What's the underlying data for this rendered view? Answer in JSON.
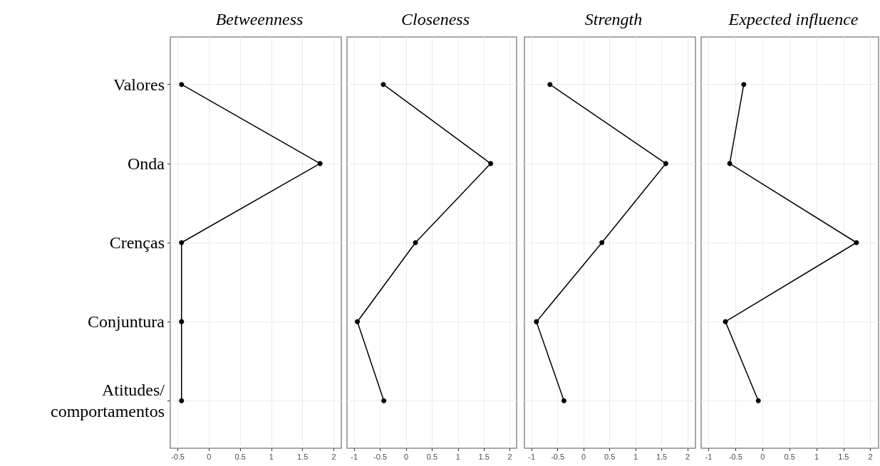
{
  "chart_data": [
    {
      "type": "line",
      "orientation": "horizontal",
      "title": "Betweenness",
      "categories": [
        "Valores",
        "Onda",
        "Crenças",
        "Conjuntura",
        "Atitudes/\ncomportamentos"
      ],
      "values": [
        -0.44,
        1.78,
        -0.44,
        -0.44,
        -0.44
      ],
      "color": "#000000",
      "xlim": [
        -0.62,
        2.12
      ],
      "xticks": [
        -0.5,
        0,
        0.5,
        1,
        1.5,
        2
      ],
      "grid": true,
      "marker": "circle"
    },
    {
      "type": "line",
      "orientation": "horizontal",
      "title": "Closeness",
      "categories": [
        null,
        null,
        null,
        null,
        null
      ],
      "values": [
        -0.44,
        1.63,
        0.18,
        -0.94,
        -0.43
      ],
      "color": "#000000",
      "xlim": [
        -1.14,
        2.13
      ],
      "xticks": [
        -1,
        -0.5,
        0,
        0.5,
        1,
        1.5,
        2
      ],
      "grid": true,
      "marker": "circle",
      "tick_labels": "x"
    },
    {
      "type": "line",
      "orientation": "horizontal",
      "title": "Strength",
      "categories": [
        null,
        null,
        null,
        null,
        null
      ],
      "values": [
        -0.65,
        1.58,
        0.35,
        -0.91,
        -0.38
      ],
      "color": "#000000",
      "xlim": [
        -1.14,
        2.15
      ],
      "xticks": [
        -1,
        -0.5,
        0,
        0.5,
        1,
        1.5,
        2
      ],
      "grid": true,
      "marker": "circle",
      "tick_labels": "x"
    },
    {
      "type": "line",
      "orientation": "horizontal",
      "title": "Expected influence",
      "categories": [
        null,
        null,
        null,
        null,
        null
      ],
      "values": [
        -0.35,
        -0.61,
        1.74,
        -0.69,
        -0.08
      ],
      "color": "#000000",
      "xlim": [
        -1.14,
        2.15
      ],
      "xticks": [
        -1,
        -0.5,
        0,
        0.5,
        1,
        1.5,
        2
      ],
      "grid": true,
      "marker": "circle",
      "tick_labels": "x"
    }
  ]
}
